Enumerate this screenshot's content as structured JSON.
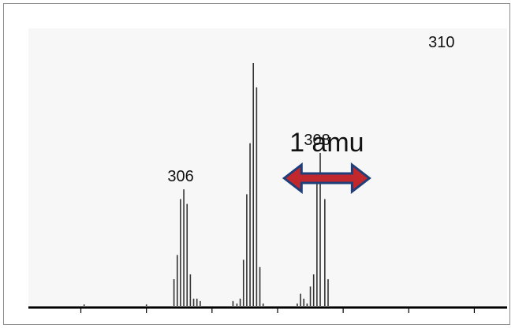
{
  "chart_data": {
    "type": "bar",
    "title": "",
    "xlabel": "",
    "ylabel": "",
    "x_unit": "amu",
    "ylim": [
      0,
      100
    ],
    "peak_labels": [
      {
        "text": "306",
        "x": 306
      },
      {
        "text": "308",
        "x": 308
      },
      {
        "text": "310",
        "x": 310
      }
    ],
    "annotation": {
      "text": "1 amu",
      "from": 307.6,
      "to": 308.9,
      "color": "#c0282d"
    },
    "x_ticks": [
      304.5,
      305.5,
      306.5,
      307.5,
      308.5,
      309.5,
      310.5
    ],
    "xlim": [
      303.7,
      311.0
    ],
    "series": [
      {
        "x": [
          304.55,
          305.5,
          305.92,
          305.97,
          306.02,
          306.07,
          306.12,
          306.17,
          306.22,
          306.27,
          306.32,
          306.82,
          306.88,
          306.93,
          306.98,
          307.03,
          307.08,
          307.13,
          307.18,
          307.23,
          307.28,
          307.8,
          307.85,
          307.9,
          307.95,
          308.0,
          308.05,
          308.1,
          308.15,
          308.22,
          308.27
        ],
        "values": [
          0.6,
          0.6,
          11,
          21,
          44,
          48,
          42,
          13,
          3,
          3,
          2,
          2,
          1,
          3,
          19,
          46,
          67,
          100,
          90,
          16,
          1,
          1,
          5,
          3,
          1,
          8,
          13,
          52,
          63,
          44,
          11
        ]
      }
    ]
  },
  "frame": {
    "border_color": "#8c8c8c",
    "bar_color": "#333333",
    "axis_color": "#000000"
  }
}
